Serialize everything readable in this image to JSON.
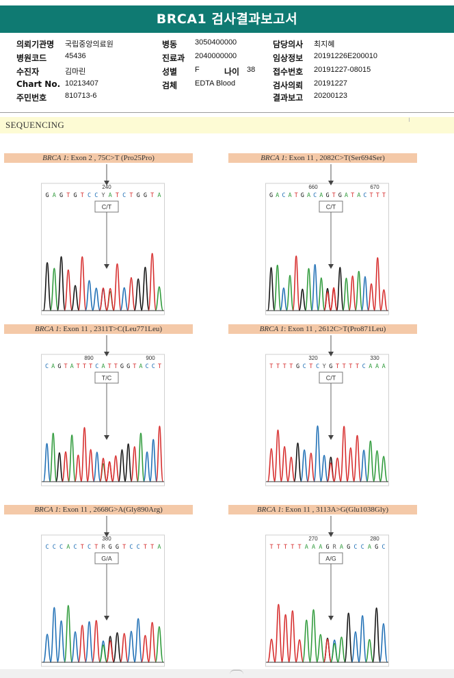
{
  "title": "BRCA1 검사결과보고서",
  "info": {
    "rows": [
      [
        {
          "label": "의뢰기관명",
          "value": "국립중앙의료원"
        },
        {
          "label": "병동",
          "value": "3050400000"
        },
        {
          "label": "담당의사",
          "value": "최지혜"
        }
      ],
      [
        {
          "label": "병원코드",
          "value": "45436"
        },
        {
          "label": "진료과",
          "value": "2040000000"
        },
        {
          "label": "임상정보",
          "value": "20191226E200010"
        }
      ],
      [
        {
          "label": "수진자",
          "value": "김마린"
        },
        {
          "label": "성별",
          "value": "F"
        },
        {
          "label": "접수번호",
          "value": "20191227-08015"
        }
      ],
      [
        {
          "label": "Chart No.",
          "value": "10213407"
        },
        {
          "label": "검체",
          "value": "EDTA Blood"
        },
        {
          "label": "검사의뢰",
          "value": "20191227"
        }
      ],
      [
        {
          "label": "주민번호",
          "value": "810713-6"
        },
        {
          "label": "",
          "value": ""
        },
        {
          "label": "결과보고",
          "value": "20200123"
        }
      ]
    ],
    "age_label": "나이",
    "age_value": "38"
  },
  "section_title": "SEQUENCING",
  "panels": [
    {
      "gene": "BRCA 1",
      "detail": ": Exon 2 , 75C>T (Pro25Pro)",
      "pos_labels": [
        "240"
      ],
      "bases": "G A G T G T C C Y A T C T G G T A",
      "call": "C/T"
    },
    {
      "gene": "BRCA 1",
      "detail": ": Exon 11 , 2082C>T(Ser694Ser)",
      "pos_labels": [
        "660",
        "670"
      ],
      "bases": "G A C A T G A C A G T G A T A C T T T",
      "call": "C/T"
    },
    {
      "gene": "BRCA 1",
      "detail": ": Exon 11 , 2311T>C(Leu771Leu)",
      "pos_labels": [
        "890",
        "900"
      ],
      "bases": "C A G T A T T T C A T T G G T A C C T",
      "call": "T/C"
    },
    {
      "gene": "BRCA 1",
      "detail": ": Exon 11 , 2612C>T(Pro871Leu)",
      "pos_labels": [
        "320",
        "330"
      ],
      "bases": "T T T T G C T C Y G T T T T C A A A",
      "call": "C/T"
    },
    {
      "gene": "BRCA 1",
      "detail": ": Exon 11 , 2668G>A(Gly890Arg)",
      "pos_labels": [
        "380"
      ],
      "bases": "C C C A C T C T R G G T C C T T A",
      "call": "G/A"
    },
    {
      "gene": "BRCA 1",
      "detail": ": Exon 11 , 3113A>G(Glu1038Gly)",
      "pos_labels": [
        "270",
        "280"
      ],
      "bases": "T T T T T A A A G R A G C C A G C",
      "call": "A/G"
    }
  ],
  "colors": {
    "header": "#0f7a72",
    "caption": "#f4c9a8",
    "sequencing_bar": "#fdfbd4",
    "A": "#2e9a3a",
    "C": "#1f6fb5",
    "G": "#111111",
    "T": "#d62b2b"
  }
}
